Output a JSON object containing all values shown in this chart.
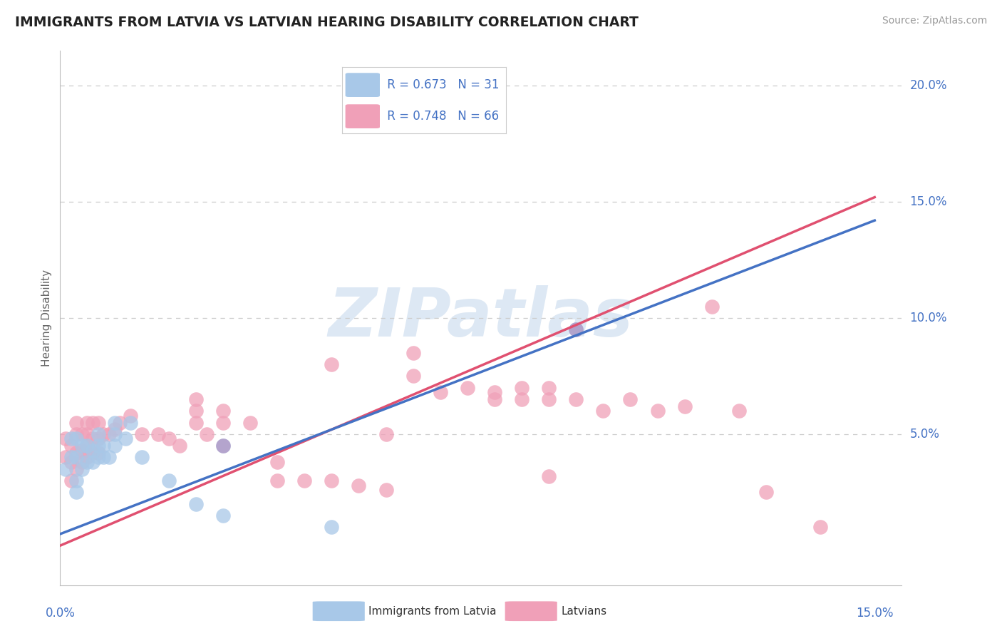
{
  "title": "IMMIGRANTS FROM LATVIA VS LATVIAN HEARING DISABILITY CORRELATION CHART",
  "source": "Source: ZipAtlas.com",
  "ylabel": "Hearing Disability",
  "xlim": [
    0.0,
    0.155
  ],
  "ylim": [
    -0.015,
    0.215
  ],
  "grid_color": "#cccccc",
  "background_color": "#ffffff",
  "watermark_text": "ZIPatlas",
  "legend_r1": "R = 0.673",
  "legend_n1": "N = 31",
  "legend_r2": "R = 0.748",
  "legend_n2": "N = 66",
  "blue_color": "#a8c8e8",
  "pink_color": "#f0a0b8",
  "purple_color": "#b090c0",
  "line_blue": "#4472c4",
  "line_pink": "#e05070",
  "label_blue": "Immigrants from Latvia",
  "label_pink": "Latvians",
  "title_color": "#222222",
  "axis_label_color": "#4472c4",
  "blue_scatter_x": [
    0.001,
    0.002,
    0.002,
    0.003,
    0.003,
    0.004,
    0.004,
    0.005,
    0.005,
    0.006,
    0.006,
    0.007,
    0.007,
    0.007,
    0.008,
    0.008,
    0.009,
    0.01,
    0.01,
    0.01,
    0.012,
    0.013,
    0.015,
    0.02,
    0.025,
    0.03,
    0.05,
    0.03,
    0.003,
    0.003,
    0.095
  ],
  "blue_scatter_y": [
    0.035,
    0.04,
    0.048,
    0.04,
    0.048,
    0.035,
    0.045,
    0.038,
    0.045,
    0.038,
    0.043,
    0.04,
    0.045,
    0.05,
    0.04,
    0.045,
    0.04,
    0.045,
    0.05,
    0.055,
    0.048,
    0.055,
    0.04,
    0.03,
    0.02,
    0.015,
    0.01,
    0.045,
    0.025,
    0.03,
    0.095
  ],
  "pink_scatter_x": [
    0.001,
    0.001,
    0.002,
    0.002,
    0.002,
    0.003,
    0.003,
    0.003,
    0.003,
    0.004,
    0.004,
    0.004,
    0.005,
    0.005,
    0.005,
    0.005,
    0.006,
    0.006,
    0.006,
    0.007,
    0.007,
    0.007,
    0.008,
    0.009,
    0.01,
    0.011,
    0.013,
    0.015,
    0.018,
    0.02,
    0.022,
    0.025,
    0.025,
    0.025,
    0.027,
    0.03,
    0.03,
    0.035,
    0.04,
    0.04,
    0.045,
    0.05,
    0.055,
    0.06,
    0.065,
    0.065,
    0.07,
    0.075,
    0.08,
    0.08,
    0.085,
    0.085,
    0.09,
    0.09,
    0.095,
    0.1,
    0.105,
    0.11,
    0.115,
    0.12,
    0.125,
    0.13,
    0.14,
    0.05,
    0.06,
    0.09
  ],
  "pink_scatter_y": [
    0.04,
    0.048,
    0.03,
    0.038,
    0.045,
    0.035,
    0.042,
    0.05,
    0.055,
    0.038,
    0.043,
    0.05,
    0.04,
    0.045,
    0.05,
    0.055,
    0.042,
    0.048,
    0.055,
    0.042,
    0.048,
    0.055,
    0.05,
    0.05,
    0.052,
    0.055,
    0.058,
    0.05,
    0.05,
    0.048,
    0.045,
    0.055,
    0.06,
    0.065,
    0.05,
    0.055,
    0.06,
    0.055,
    0.03,
    0.038,
    0.03,
    0.03,
    0.028,
    0.026,
    0.075,
    0.085,
    0.068,
    0.07,
    0.065,
    0.068,
    0.065,
    0.07,
    0.065,
    0.07,
    0.065,
    0.06,
    0.065,
    0.06,
    0.062,
    0.105,
    0.06,
    0.025,
    0.01,
    0.08,
    0.05,
    0.032
  ],
  "blue_line_x": [
    0.0,
    0.15
  ],
  "blue_line_y": [
    0.007,
    0.142
  ],
  "pink_line_x": [
    0.0,
    0.15
  ],
  "pink_line_y": [
    0.002,
    0.152
  ]
}
